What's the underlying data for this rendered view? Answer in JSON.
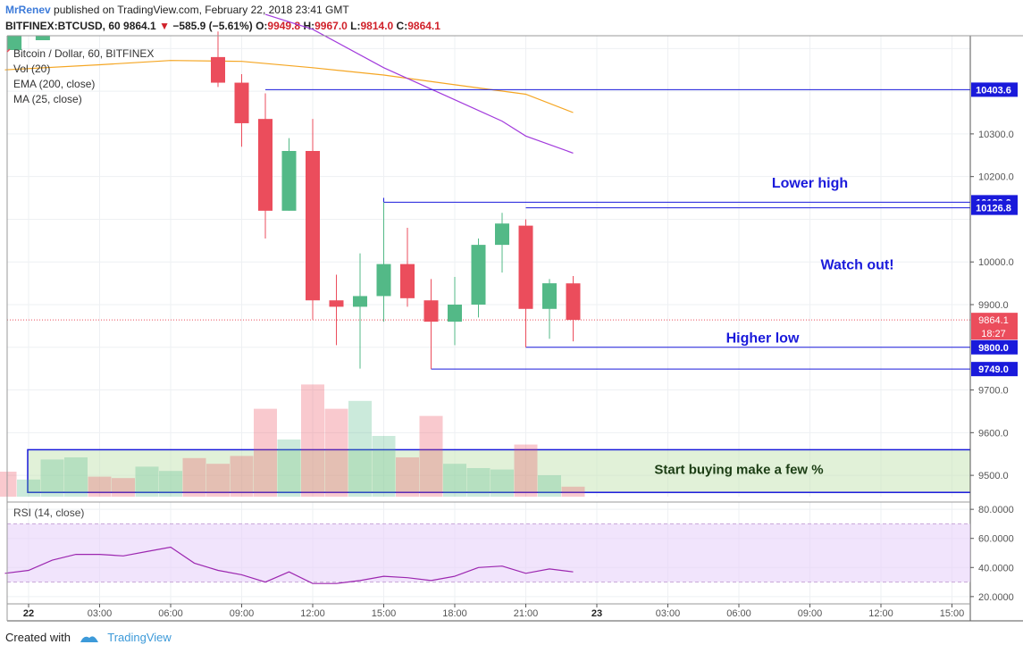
{
  "header": {
    "author": "MrRenev",
    "published": "published on TradingView.com, February 22, 2018 23:41 GMT",
    "symbol": "BITFINEX:BTCUSD, 60",
    "last": "9864.1",
    "change": "−585.9 (−5.61%)",
    "o_label": "O:",
    "o_value": "9949.8",
    "h_label": "H:",
    "h_value": "9967.0",
    "l_label": "L:",
    "l_value": "9814.0",
    "c_label": "C:",
    "c_value": "9864.1"
  },
  "legend": [
    "Bitcoin / Dollar, 60, BITFINEX",
    "Vol (20)",
    "EMA (200, close)",
    "MA (25, close)"
  ],
  "colors": {
    "up": "#53b987",
    "down": "#eb4d5c",
    "annotation": "#1a1adb",
    "ema": "#f5a623",
    "ma": "#a23bdc",
    "rsi": "#9c27b0"
  },
  "chart_data": [
    {
      "type": "candlestick",
      "title": "Bitcoin / Dollar, 60, BITFINEX",
      "ylim": [
        9450,
        10530
      ],
      "y_ticks": [
        "10300.0",
        "10200.0",
        "10000.0",
        "9900.0",
        "9700.0",
        "9600.0",
        "9500.0"
      ],
      "x_ticks": [
        "22",
        "03:00",
        "06:00",
        "09:00",
        "12:00",
        "15:00",
        "18:00",
        "21:00",
        "23",
        "03:00",
        "06:00",
        "09:00",
        "12:00",
        "15:00"
      ],
      "x_tick_hours": [
        0,
        3,
        6,
        9,
        12,
        15,
        18,
        21,
        24,
        27,
        30,
        33,
        36,
        39
      ],
      "candles": [
        {
          "h": 8,
          "o": 10480,
          "c": 10420,
          "hi": 10540,
          "lo": 10410
        },
        {
          "h": 9,
          "o": 10420,
          "c": 10325,
          "hi": 10440,
          "lo": 10270
        },
        {
          "h": 10,
          "o": 10335,
          "c": 10120,
          "hi": 10395,
          "lo": 10055
        },
        {
          "h": 11,
          "o": 10120,
          "c": 10260,
          "hi": 10290,
          "lo": 10120
        },
        {
          "h": 12,
          "o": 10260,
          "c": 9910,
          "hi": 10335,
          "lo": 9865
        },
        {
          "h": 13,
          "o": 9910,
          "c": 9895,
          "hi": 9970,
          "lo": 9805
        },
        {
          "h": 14,
          "o": 9895,
          "c": 9920,
          "hi": 10020,
          "lo": 9750
        },
        {
          "h": 15,
          "o": 9920,
          "c": 9995,
          "hi": 10140,
          "lo": 9860
        },
        {
          "h": 16,
          "o": 9995,
          "c": 9915,
          "hi": 10080,
          "lo": 9895
        },
        {
          "h": 17,
          "o": 9910,
          "c": 9860,
          "hi": 9960,
          "lo": 9749
        },
        {
          "h": 18,
          "o": 9860,
          "c": 9900,
          "hi": 9965,
          "lo": 9805
        },
        {
          "h": 19,
          "o": 9900,
          "c": 10040,
          "hi": 10055,
          "lo": 9870
        },
        {
          "h": 20,
          "o": 10040,
          "c": 10090,
          "hi": 10115,
          "lo": 9975
        },
        {
          "h": 21,
          "o": 10085,
          "c": 9890,
          "hi": 10100,
          "lo": 9800
        },
        {
          "h": 22,
          "o": 9890,
          "c": 9950,
          "hi": 9960,
          "lo": 9820
        },
        {
          "h": 23,
          "o": 9949.8,
          "c": 9864.1,
          "hi": 9967,
          "lo": 9814
        }
      ],
      "volume_max": 100,
      "volume": [
        {
          "h": -1,
          "v": 35,
          "up": false
        },
        {
          "h": 0,
          "v": 24,
          "up": true
        },
        {
          "h": 1,
          "v": 52,
          "up": true
        },
        {
          "h": 2,
          "v": 55,
          "up": true
        },
        {
          "h": 3,
          "v": 28,
          "up": false
        },
        {
          "h": 4,
          "v": 26,
          "up": false
        },
        {
          "h": 5,
          "v": 42,
          "up": true
        },
        {
          "h": 6,
          "v": 36,
          "up": true
        },
        {
          "h": 7,
          "v": 54,
          "up": false
        },
        {
          "h": 8,
          "v": 46,
          "up": false
        },
        {
          "h": 9,
          "v": 57,
          "up": false
        },
        {
          "h": 10,
          "v": 123,
          "up": false
        },
        {
          "h": 11,
          "v": 80,
          "up": true
        },
        {
          "h": 12,
          "v": 157,
          "up": false
        },
        {
          "h": 13,
          "v": 123,
          "up": false
        },
        {
          "h": 14,
          "v": 134,
          "up": true
        },
        {
          "h": 15,
          "v": 85,
          "up": true
        },
        {
          "h": 16,
          "v": 55,
          "up": false
        },
        {
          "h": 17,
          "v": 113,
          "up": false
        },
        {
          "h": 18,
          "v": 46,
          "up": true
        },
        {
          "h": 19,
          "v": 40,
          "up": true
        },
        {
          "h": 20,
          "v": 38,
          "up": true
        },
        {
          "h": 21,
          "v": 73,
          "up": false
        },
        {
          "h": 22,
          "v": 30,
          "up": true
        },
        {
          "h": 23,
          "v": 14,
          "up": false
        }
      ],
      "ema": [
        [
          -1,
          10450
        ],
        [
          3,
          10462
        ],
        [
          6,
          10472
        ],
        [
          9,
          10470
        ],
        [
          12,
          10455
        ],
        [
          15,
          10438
        ],
        [
          18,
          10415
        ],
        [
          21,
          10393
        ],
        [
          23,
          10350
        ]
      ],
      "ma": [
        [
          10,
          10580
        ],
        [
          12,
          10545
        ],
        [
          15,
          10455
        ],
        [
          18,
          10380
        ],
        [
          20,
          10330
        ],
        [
          21,
          10295
        ],
        [
          23,
          10255
        ]
      ],
      "price_tags": [
        {
          "value": 10403.6,
          "label": "10403.6",
          "start_h": 10
        },
        {
          "value": 10139.9,
          "label": "10139.9",
          "start_h": 15
        },
        {
          "value": 10126.8,
          "label": "10126.8",
          "start_h": 21
        },
        {
          "value": 9800.0,
          "label": "9800.0",
          "start_h": 21
        },
        {
          "value": 9749.0,
          "label": "9749.0",
          "start_h": 17
        }
      ],
      "last_price": {
        "value": 9864.1,
        "label": "9864.1",
        "countdown": "18:27"
      },
      "annotations": [
        {
          "text": "Lower high",
          "price": 10185,
          "h": 33
        },
        {
          "text": "Watch out!",
          "price": 9993,
          "h": 35
        },
        {
          "text": "Higher low",
          "price": 9822,
          "h": 31
        },
        {
          "text": "Start buying make a few %",
          "price": 9514,
          "h": 30
        }
      ],
      "buy_zone": {
        "start_h": 0,
        "end_h": 40,
        "top": 9560,
        "bottom": 9460
      }
    },
    {
      "type": "line",
      "title": "RSI (14, close)",
      "ylim": [
        15,
        85
      ],
      "y_ticks": [
        "80.0000",
        "60.0000",
        "40.0000",
        "20.0000"
      ],
      "band": [
        30,
        70
      ],
      "x": [
        -1,
        0,
        1,
        2,
        3,
        4,
        5,
        6,
        7,
        8,
        9,
        10,
        11,
        12,
        13,
        14,
        15,
        16,
        17,
        18,
        19,
        20,
        21,
        22,
        23
      ],
      "values": [
        36,
        38,
        45,
        49,
        49,
        48,
        51,
        54,
        43,
        38,
        35,
        30,
        37,
        29,
        29,
        31,
        34,
        33,
        31,
        34,
        40,
        41,
        36,
        39,
        37
      ]
    }
  ],
  "footer": {
    "created_with": "Created with",
    "brand": "TradingView"
  }
}
